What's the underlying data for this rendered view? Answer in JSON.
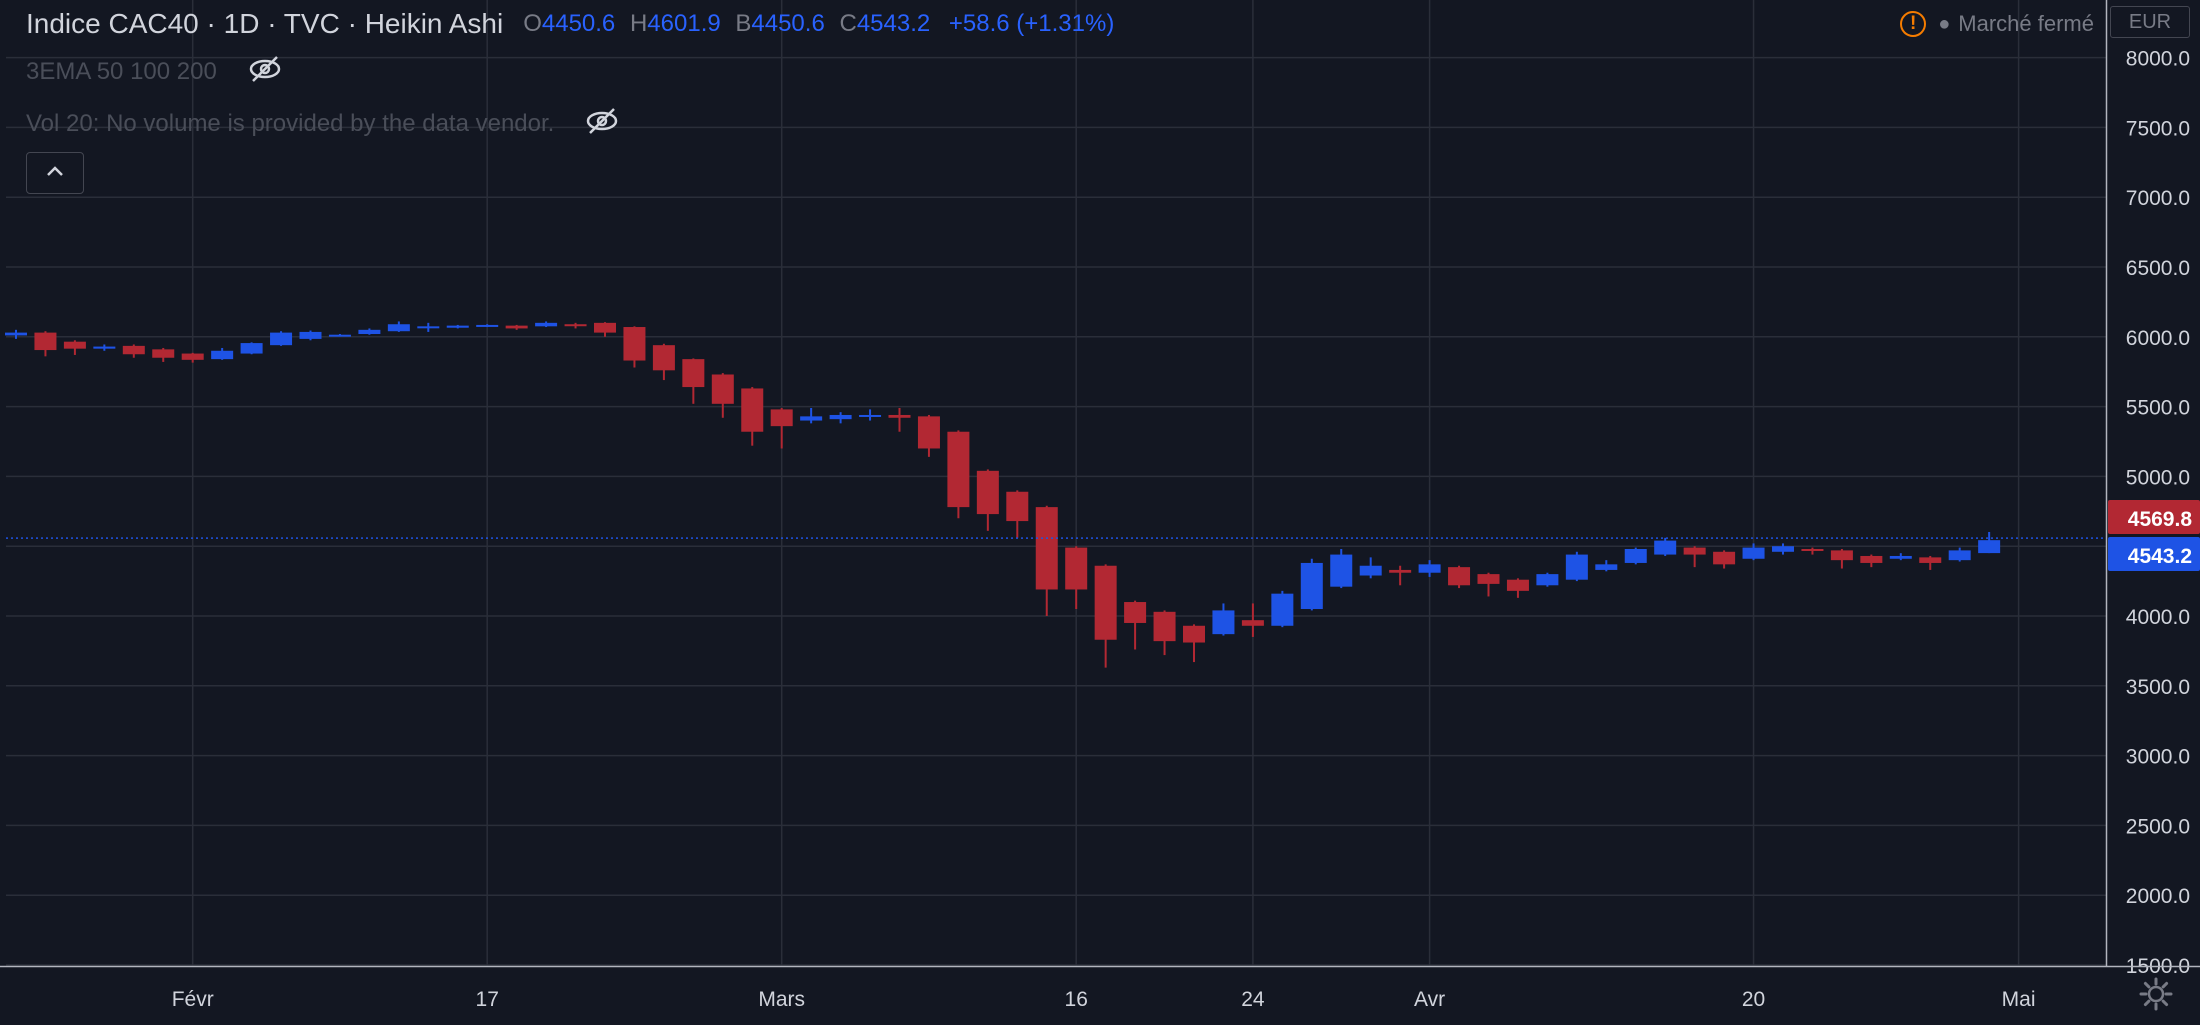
{
  "header": {
    "symbol": "Indice CAC40 · 1D · TVC · Heikin Ashi",
    "ohlc": [
      {
        "k": "O",
        "v": "4450.6"
      },
      {
        "k": "H",
        "v": "4601.9"
      },
      {
        "k": "B",
        "v": "4450.6"
      },
      {
        "k": "C",
        "v": "4543.2"
      }
    ],
    "change": "+58.6 (+1.31%)",
    "market_status": "Marché fermé",
    "currency": "EUR",
    "value_color": "#2962ff"
  },
  "indicators": {
    "ema": "3EMA 50 100 200",
    "volume": "Vol 20: No volume is provided by the data vendor."
  },
  "icons": {
    "hide": "eye-off-icon",
    "collapse": "chevron-up-icon",
    "warning": "warning-icon",
    "settings": "gear-icon"
  },
  "chart_data": {
    "type": "candlestick",
    "chart_style": "Heikin Ashi",
    "title": "",
    "xlabel": "",
    "ylabel": "",
    "up_color": "#1e53e5",
    "down_color": "#b22833",
    "ylim": [
      1350,
      8000
    ],
    "y_ticks": [
      "1500.0",
      "2000.0",
      "2500.0",
      "3000.0",
      "3500.0",
      "4000.0",
      "4500.0",
      "5000.0",
      "5500.0",
      "6000.0",
      "6500.0",
      "7000.0",
      "7500.0",
      "8000.0"
    ],
    "x_ticks": [
      {
        "label": "Févr",
        "date": "2020-02-03"
      },
      {
        "label": "17",
        "date": "2020-02-17"
      },
      {
        "label": "Mars",
        "date": "2020-03-02"
      },
      {
        "label": "16",
        "date": "2020-03-16"
      },
      {
        "label": "24",
        "date": "2020-03-24"
      },
      {
        "label": "Avr",
        "date": "2020-04-01"
      },
      {
        "label": "20",
        "date": "2020-04-20"
      },
      {
        "label": "Mai",
        "date": "2020-05-01"
      }
    ],
    "price_labels": [
      {
        "value": 4569.8,
        "text": "4569.8",
        "color": "#b22833"
      },
      {
        "value": 4543.2,
        "text": "4543.2",
        "color": "#1e53e5"
      }
    ],
    "candles": [
      {
        "date": "2020-01-24",
        "o": 6010,
        "h": 6050,
        "l": 5985,
        "c": 6030
      },
      {
        "date": "2020-01-27",
        "o": 6030,
        "h": 6040,
        "l": 5860,
        "c": 5905
      },
      {
        "date": "2020-01-28",
        "o": 5965,
        "h": 5975,
        "l": 5870,
        "c": 5915
      },
      {
        "date": "2020-01-29",
        "o": 5915,
        "h": 5945,
        "l": 5900,
        "c": 5930
      },
      {
        "date": "2020-01-30",
        "o": 5935,
        "h": 5945,
        "l": 5850,
        "c": 5875
      },
      {
        "date": "2020-01-31",
        "o": 5910,
        "h": 5920,
        "l": 5820,
        "c": 5850
      },
      {
        "date": "2020-02-03",
        "o": 5880,
        "h": 5885,
        "l": 5815,
        "c": 5835
      },
      {
        "date": "2020-02-04",
        "o": 5840,
        "h": 5920,
        "l": 5835,
        "c": 5900
      },
      {
        "date": "2020-02-05",
        "o": 5880,
        "h": 5960,
        "l": 5875,
        "c": 5955
      },
      {
        "date": "2020-02-06",
        "o": 5940,
        "h": 6040,
        "l": 5935,
        "c": 6030
      },
      {
        "date": "2020-02-07",
        "o": 5985,
        "h": 6045,
        "l": 5975,
        "c": 6035
      },
      {
        "date": "2020-02-10",
        "o": 6010,
        "h": 6020,
        "l": 6005,
        "c": 6015
      },
      {
        "date": "2020-02-11",
        "o": 6020,
        "h": 6060,
        "l": 6015,
        "c": 6050
      },
      {
        "date": "2020-02-12",
        "o": 6040,
        "h": 6110,
        "l": 6035,
        "c": 6090
      },
      {
        "date": "2020-02-13",
        "o": 6065,
        "h": 6100,
        "l": 6035,
        "c": 6075
      },
      {
        "date": "2020-02-14",
        "o": 6065,
        "h": 6085,
        "l": 6060,
        "c": 6080
      },
      {
        "date": "2020-02-17",
        "o": 6075,
        "h": 6090,
        "l": 6070,
        "c": 6085
      },
      {
        "date": "2020-02-18",
        "o": 6080,
        "h": 6085,
        "l": 6050,
        "c": 6060
      },
      {
        "date": "2020-02-19",
        "o": 6075,
        "h": 6110,
        "l": 6070,
        "c": 6100
      },
      {
        "date": "2020-02-20",
        "o": 6090,
        "h": 6100,
        "l": 6060,
        "c": 6080
      },
      {
        "date": "2020-02-21",
        "o": 6100,
        "h": 6105,
        "l": 6000,
        "c": 6030
      },
      {
        "date": "2020-02-24",
        "o": 6070,
        "h": 6075,
        "l": 5780,
        "c": 5830
      },
      {
        "date": "2020-02-25",
        "o": 5940,
        "h": 5950,
        "l": 5690,
        "c": 5760
      },
      {
        "date": "2020-02-26",
        "o": 5840,
        "h": 5845,
        "l": 5520,
        "c": 5640
      },
      {
        "date": "2020-02-27",
        "o": 5730,
        "h": 5740,
        "l": 5420,
        "c": 5520
      },
      {
        "date": "2020-02-28",
        "o": 5630,
        "h": 5640,
        "l": 5220,
        "c": 5320
      },
      {
        "date": "2020-03-02",
        "o": 5480,
        "h": 5490,
        "l": 5200,
        "c": 5360
      },
      {
        "date": "2020-03-03",
        "o": 5400,
        "h": 5490,
        "l": 5380,
        "c": 5430
      },
      {
        "date": "2020-03-04",
        "o": 5410,
        "h": 5460,
        "l": 5380,
        "c": 5440
      },
      {
        "date": "2020-03-05",
        "o": 5430,
        "h": 5480,
        "l": 5400,
        "c": 5440
      },
      {
        "date": "2020-03-06",
        "o": 5440,
        "h": 5490,
        "l": 5320,
        "c": 5420
      },
      {
        "date": "2020-03-09",
        "o": 5430,
        "h": 5440,
        "l": 5140,
        "c": 5200
      },
      {
        "date": "2020-03-10",
        "o": 5320,
        "h": 5330,
        "l": 4700,
        "c": 4780
      },
      {
        "date": "2020-03-11",
        "o": 5040,
        "h": 5050,
        "l": 4610,
        "c": 4730
      },
      {
        "date": "2020-03-12",
        "o": 4890,
        "h": 4900,
        "l": 4560,
        "c": 4680
      },
      {
        "date": "2020-03-13",
        "o": 4780,
        "h": 4790,
        "l": 4000,
        "c": 4190
      },
      {
        "date": "2020-03-16",
        "o": 4490,
        "h": 4500,
        "l": 4050,
        "c": 4190
      },
      {
        "date": "2020-03-17",
        "o": 4360,
        "h": 4370,
        "l": 3630,
        "c": 3830
      },
      {
        "date": "2020-03-18",
        "o": 4100,
        "h": 4110,
        "l": 3760,
        "c": 3950
      },
      {
        "date": "2020-03-19",
        "o": 4030,
        "h": 4040,
        "l": 3720,
        "c": 3820
      },
      {
        "date": "2020-03-20",
        "o": 3930,
        "h": 3940,
        "l": 3670,
        "c": 3810
      },
      {
        "date": "2020-03-23",
        "o": 3870,
        "h": 4090,
        "l": 3860,
        "c": 4040
      },
      {
        "date": "2020-03-24",
        "o": 3970,
        "h": 4090,
        "l": 3850,
        "c": 3930
      },
      {
        "date": "2020-03-25",
        "o": 3930,
        "h": 4180,
        "l": 3920,
        "c": 4160
      },
      {
        "date": "2020-03-26",
        "o": 4050,
        "h": 4410,
        "l": 4040,
        "c": 4380
      },
      {
        "date": "2020-03-27",
        "o": 4210,
        "h": 4480,
        "l": 4200,
        "c": 4440
      },
      {
        "date": "2020-03-30",
        "o": 4290,
        "h": 4420,
        "l": 4270,
        "c": 4360
      },
      {
        "date": "2020-03-31",
        "o": 4330,
        "h": 4360,
        "l": 4220,
        "c": 4310
      },
      {
        "date": "2020-04-01",
        "o": 4310,
        "h": 4400,
        "l": 4280,
        "c": 4370
      },
      {
        "date": "2020-04-02",
        "o": 4350,
        "h": 4360,
        "l": 4200,
        "c": 4220
      },
      {
        "date": "2020-04-03",
        "o": 4300,
        "h": 4310,
        "l": 4140,
        "c": 4230
      },
      {
        "date": "2020-04-06",
        "o": 4260,
        "h": 4270,
        "l": 4130,
        "c": 4180
      },
      {
        "date": "2020-04-07",
        "o": 4220,
        "h": 4310,
        "l": 4210,
        "c": 4300
      },
      {
        "date": "2020-04-08",
        "o": 4260,
        "h": 4460,
        "l": 4250,
        "c": 4440
      },
      {
        "date": "2020-04-09",
        "o": 4330,
        "h": 4400,
        "l": 4320,
        "c": 4370
      },
      {
        "date": "2020-04-14",
        "o": 4380,
        "h": 4490,
        "l": 4370,
        "c": 4480
      },
      {
        "date": "2020-04-15",
        "o": 4440,
        "h": 4560,
        "l": 4430,
        "c": 4540
      },
      {
        "date": "2020-04-16",
        "o": 4490,
        "h": 4500,
        "l": 4350,
        "c": 4440
      },
      {
        "date": "2020-04-17",
        "o": 4460,
        "h": 4470,
        "l": 4340,
        "c": 4370
      },
      {
        "date": "2020-04-20",
        "o": 4410,
        "h": 4520,
        "l": 4400,
        "c": 4490
      },
      {
        "date": "2020-04-21",
        "o": 4460,
        "h": 4520,
        "l": 4440,
        "c": 4500
      },
      {
        "date": "2020-04-22",
        "o": 4480,
        "h": 4490,
        "l": 4440,
        "c": 4470
      },
      {
        "date": "2020-04-23",
        "o": 4470,
        "h": 4480,
        "l": 4340,
        "c": 4400
      },
      {
        "date": "2020-04-24",
        "o": 4430,
        "h": 4440,
        "l": 4350,
        "c": 4380
      },
      {
        "date": "2020-04-27",
        "o": 4410,
        "h": 4450,
        "l": 4400,
        "c": 4430
      },
      {
        "date": "2020-04-28",
        "o": 4420,
        "h": 4430,
        "l": 4330,
        "c": 4380
      },
      {
        "date": "2020-04-29",
        "o": 4400,
        "h": 4490,
        "l": 4390,
        "c": 4470
      },
      {
        "date": "2020-04-30",
        "o": 4450.6,
        "h": 4601.9,
        "l": 4450.6,
        "c": 4543.2
      }
    ]
  }
}
